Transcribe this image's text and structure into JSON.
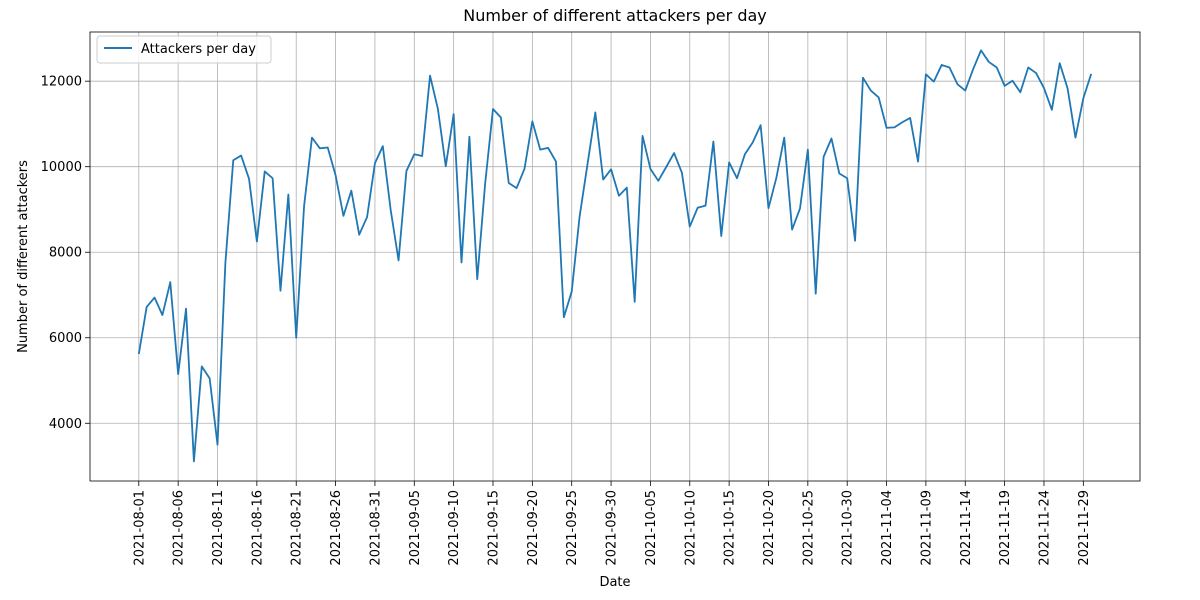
{
  "chart_data": {
    "type": "line",
    "title": "Number of different attackers per day",
    "xlabel": "Date",
    "ylabel": "Number of different attackers",
    "x_start": "2021-08-01",
    "x_tick_labels": [
      "2021-08-01",
      "2021-08-06",
      "2021-08-11",
      "2021-08-16",
      "2021-08-21",
      "2021-08-26",
      "2021-08-31",
      "2021-09-05",
      "2021-09-10",
      "2021-09-15",
      "2021-09-20",
      "2021-09-25",
      "2021-09-30",
      "2021-10-05",
      "2021-10-10",
      "2021-10-15",
      "2021-10-20",
      "2021-10-25",
      "2021-10-30",
      "2021-11-04",
      "2021-11-09",
      "2021-11-14",
      "2021-11-19",
      "2021-11-24",
      "2021-11-29"
    ],
    "y_tick_labels": [
      "4000",
      "6000",
      "8000",
      "10000",
      "12000"
    ],
    "ylim": [
      2650,
      13150
    ],
    "xlim_days": [
      -6.2,
      127.2
    ],
    "grid": true,
    "legend_position": "top-left",
    "color": "#1f77b4",
    "series": [
      {
        "name": "Attackers per day",
        "values": [
          5620,
          6720,
          6940,
          6530,
          7300,
          5150,
          6680,
          3110,
          5330,
          5050,
          3500,
          7750,
          10150,
          10260,
          9720,
          8250,
          9890,
          9730,
          7100,
          9350,
          6000,
          9080,
          10680,
          10430,
          10450,
          9800,
          8850,
          9440,
          8410,
          8820,
          10080,
          10480,
          8990,
          7810,
          9900,
          10290,
          10250,
          12130,
          11350,
          10010,
          11230,
          7760,
          10700,
          7370,
          9600,
          11350,
          11150,
          9620,
          9500,
          9950,
          11060,
          10400,
          10440,
          10120,
          6480,
          7080,
          8830,
          10050,
          11270,
          9700,
          9940,
          9320,
          9510,
          6840,
          10720,
          9950,
          9670,
          9990,
          10320,
          9860,
          8600,
          9040,
          9090,
          10590,
          8380,
          10100,
          9730,
          10290,
          10570,
          10970,
          9030,
          9740,
          10680,
          8530,
          9020,
          10400,
          7030,
          10230,
          10660,
          9840,
          9730,
          8270,
          12080,
          11780,
          11620,
          10910,
          10920,
          11040,
          11140,
          10120,
          12160,
          11990,
          12380,
          12320,
          11930,
          11780,
          12280,
          12720,
          12450,
          12320,
          11890,
          12010,
          11740,
          12320,
          12190,
          11840,
          11330,
          12420,
          11830,
          10680,
          11600,
          12170
        ]
      }
    ]
  }
}
